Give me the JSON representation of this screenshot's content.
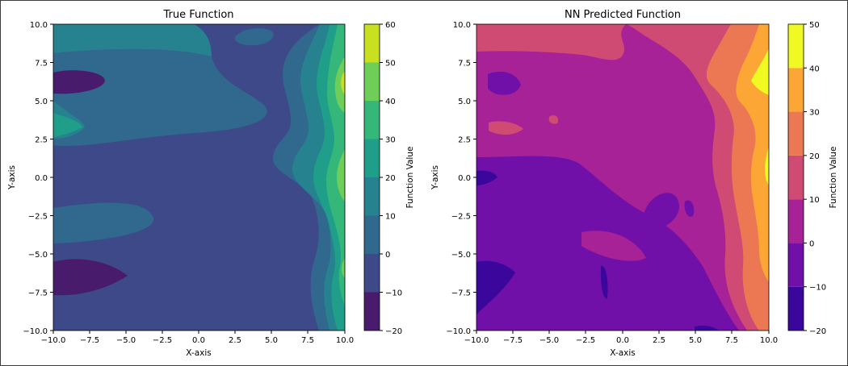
{
  "chart_data": [
    {
      "type": "heatmap",
      "subtype": "filled-contour",
      "title": "True Function",
      "xlabel": "X-axis",
      "ylabel": "Y-axis",
      "xlim": [
        -10.0,
        10.0
      ],
      "ylim": [
        -10.0,
        10.0
      ],
      "x_ticks": [
        "−10.0",
        "−7.5",
        "−5.0",
        "−2.5",
        "0.0",
        "2.5",
        "5.0",
        "7.5",
        "10.0"
      ],
      "y_ticks": [
        "−10.0",
        "−7.5",
        "−5.0",
        "−2.5",
        "0.0",
        "2.5",
        "5.0",
        "7.5",
        "10.0"
      ],
      "colorbar": {
        "label": "Function Value",
        "colormap": "viridis",
        "levels": [
          -20,
          -10,
          0,
          10,
          20,
          30,
          40,
          50,
          60
        ],
        "tick_labels": [
          "−20",
          "−10",
          "0",
          "10",
          "20",
          "30",
          "40",
          "50",
          "60"
        ],
        "colors": [
          "#481b6d",
          "#3e4989",
          "#31688e",
          "#26828e",
          "#1f9e89",
          "#35b779",
          "#6ece58",
          "#c8e020"
        ]
      },
      "grid": false
    },
    {
      "type": "heatmap",
      "subtype": "filled-contour",
      "title": "NN Predicted Function",
      "xlabel": "X-axis",
      "ylabel": "Y-axis",
      "xlim": [
        -10.0,
        10.0
      ],
      "ylim": [
        -10.0,
        10.0
      ],
      "x_ticks": [
        "−10.0",
        "−7.5",
        "−5.0",
        "−2.5",
        "0.0",
        "2.5",
        "5.0",
        "7.5",
        "10.0"
      ],
      "y_ticks": [
        "−10.0",
        "−7.5",
        "−5.0",
        "−2.5",
        "0.0",
        "2.5",
        "5.0",
        "7.5",
        "10.0"
      ],
      "colorbar": {
        "label": "Function Value",
        "colormap": "plasma",
        "levels": [
          -20,
          -10,
          0,
          10,
          20,
          30,
          40,
          50
        ],
        "tick_labels": [
          "−20",
          "−10",
          "0",
          "10",
          "20",
          "30",
          "40",
          "50"
        ],
        "colors": [
          "#3b069c",
          "#7110a8",
          "#a72197",
          "#cf4b73",
          "#ec7853",
          "#fca636",
          "#f0f921"
        ]
      },
      "grid": false
    }
  ]
}
